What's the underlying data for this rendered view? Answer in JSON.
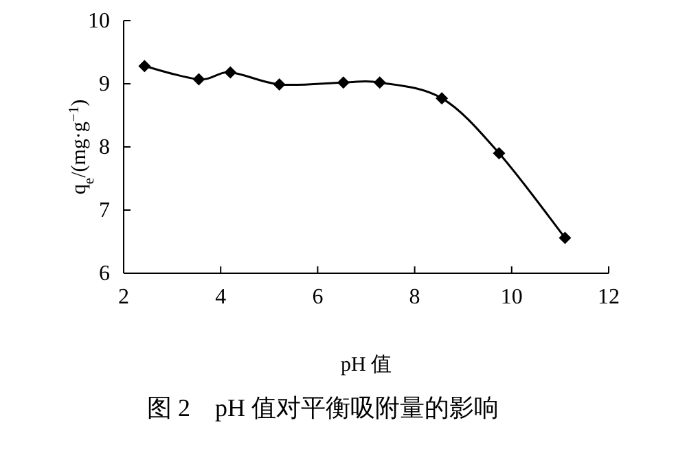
{
  "chart_data": {
    "type": "line",
    "title": "图 2　pH 值对平衡吸附量的影响",
    "xlabel": "pH 值",
    "ylabel": "q$_{e}$/(mg·g$^{−1}$)",
    "x": [
      2.43,
      3.55,
      4.2,
      5.21,
      6.53,
      7.28,
      8.56,
      9.74,
      11.1
    ],
    "series": [
      {
        "color": "#000000",
        "values": [
          9.28,
          9.07,
          9.18,
          8.99,
          9.02,
          9.02,
          8.77,
          7.9,
          6.56
        ]
      }
    ],
    "xlim": [
      2,
      12
    ],
    "xticks": [
      2,
      4,
      6,
      8,
      10,
      12
    ],
    "ylim": [
      6,
      10
    ],
    "yticks": [
      6,
      7,
      8,
      9,
      10
    ],
    "grid": false,
    "marker": "diamond",
    "line_style": "solid"
  }
}
